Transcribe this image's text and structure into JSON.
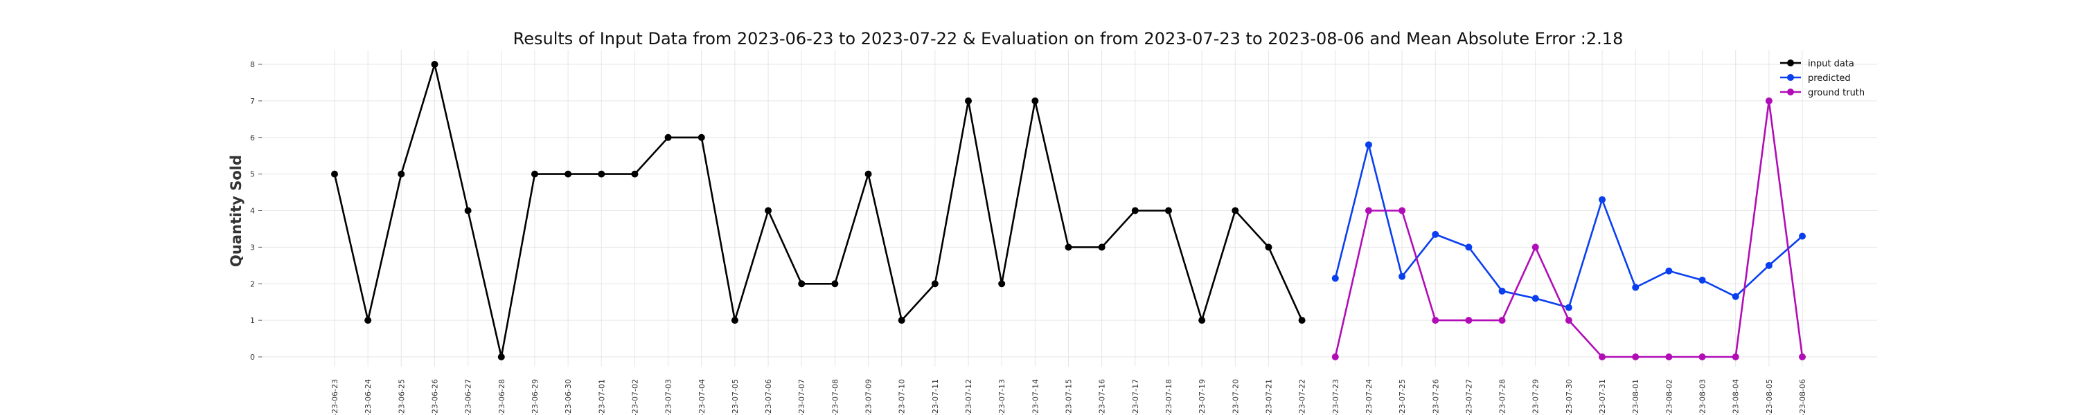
{
  "chart_data": {
    "type": "line",
    "title": "Results of Input Data from 2023-06-23 to 2023-07-22 & Evaluation on from 2023-07-23 to 2023-08-06 and Mean Absolute Error  :2.18",
    "xlabel": "",
    "ylabel": "Quantity Sold",
    "ylim": [
      0,
      8
    ],
    "yticks": [
      "0",
      "1",
      "2",
      "3",
      "4",
      "5",
      "6",
      "7",
      "8"
    ],
    "grid": true,
    "legend_position": "top-right",
    "x": [
      "2023-06-23",
      "2023-06-24",
      "2023-06-25",
      "2023-06-26",
      "2023-06-27",
      "2023-06-28",
      "2023-06-29",
      "2023-06-30",
      "2023-07-01",
      "2023-07-02",
      "2023-07-03",
      "2023-07-04",
      "2023-07-05",
      "2023-07-06",
      "2023-07-07",
      "2023-07-08",
      "2023-07-09",
      "2023-07-10",
      "2023-07-11",
      "2023-07-12",
      "2023-07-13",
      "2023-07-14",
      "2023-07-15",
      "2023-07-16",
      "2023-07-17",
      "2023-07-18",
      "2023-07-19",
      "2023-07-20",
      "2023-07-21",
      "2023-07-22",
      "2023-07-23",
      "2023-07-24",
      "2023-07-25",
      "2023-07-26",
      "2023-07-27",
      "2023-07-28",
      "2023-07-29",
      "2023-07-30",
      "2023-07-31",
      "2023-08-01",
      "2023-08-02",
      "2023-08-03",
      "2023-08-04",
      "2023-08-05",
      "2023-08-06"
    ],
    "xtick_labels": [
      "-23-06-23",
      "-23-06-24",
      "-23-06-25",
      "-23-06-26",
      "-23-06-27",
      "-23-06-28",
      "-23-06-29",
      "-23-06-30",
      "-23-07-01",
      "-23-07-02",
      "-23-07-03",
      "-23-07-04",
      "-23-07-05",
      "-23-07-06",
      "-23-07-07",
      "-23-07-08",
      "-23-07-09",
      "-23-07-10",
      "-23-07-11",
      "-23-07-12",
      "-23-07-13",
      "-23-07-14",
      "-23-07-15",
      "-23-07-16",
      "-23-07-17",
      "-23-07-18",
      "-23-07-19",
      "-23-07-20",
      "-23-07-21",
      "-23-07-22",
      "-23-07-23",
      "-23-07-24",
      "-23-07-25",
      "-23-07-26",
      "-23-07-27",
      "-23-07-28",
      "-23-07-29",
      "-23-07-30",
      "-23-07-31",
      "-23-08-01",
      "-23-08-02",
      "-23-08-03",
      "-23-08-04",
      "-23-08-05",
      "-23-08-06"
    ],
    "series": [
      {
        "name": "input data",
        "color": "#000000",
        "x": [
          "2023-06-23",
          "2023-06-24",
          "2023-06-25",
          "2023-06-26",
          "2023-06-27",
          "2023-06-28",
          "2023-06-29",
          "2023-06-30",
          "2023-07-01",
          "2023-07-02",
          "2023-07-03",
          "2023-07-04",
          "2023-07-05",
          "2023-07-06",
          "2023-07-07",
          "2023-07-08",
          "2023-07-09",
          "2023-07-10",
          "2023-07-11",
          "2023-07-12",
          "2023-07-13",
          "2023-07-14",
          "2023-07-15",
          "2023-07-16",
          "2023-07-17",
          "2023-07-18",
          "2023-07-19",
          "2023-07-20",
          "2023-07-21",
          "2023-07-22"
        ],
        "values": [
          5,
          1,
          5,
          8,
          4,
          0,
          5,
          5,
          5,
          5,
          6,
          6,
          1,
          4,
          2,
          2,
          5,
          1,
          2,
          7,
          2,
          7,
          3,
          3,
          4,
          4,
          1,
          4,
          3,
          1
        ]
      },
      {
        "name": "predicted",
        "color": "#0a3ff0",
        "x": [
          "2023-07-23",
          "2023-07-24",
          "2023-07-25",
          "2023-07-26",
          "2023-07-27",
          "2023-07-28",
          "2023-07-29",
          "2023-07-30",
          "2023-07-31",
          "2023-08-01",
          "2023-08-02",
          "2023-08-03",
          "2023-08-04",
          "2023-08-05",
          "2023-08-06"
        ],
        "values": [
          2.15,
          5.8,
          2.2,
          3.35,
          3.0,
          1.8,
          1.6,
          1.35,
          4.3,
          1.9,
          2.35,
          2.1,
          1.65,
          2.5,
          3.3
        ]
      },
      {
        "name": "ground truth",
        "color": "#b10db7",
        "x": [
          "2023-07-23",
          "2023-07-24",
          "2023-07-25",
          "2023-07-26",
          "2023-07-27",
          "2023-07-28",
          "2023-07-29",
          "2023-07-30",
          "2023-07-31",
          "2023-08-01",
          "2023-08-02",
          "2023-08-03",
          "2023-08-04",
          "2023-08-05",
          "2023-08-06"
        ],
        "values": [
          0,
          4,
          4,
          1,
          1,
          1,
          3,
          1,
          0,
          0,
          0,
          0,
          0,
          7,
          0
        ]
      }
    ]
  }
}
